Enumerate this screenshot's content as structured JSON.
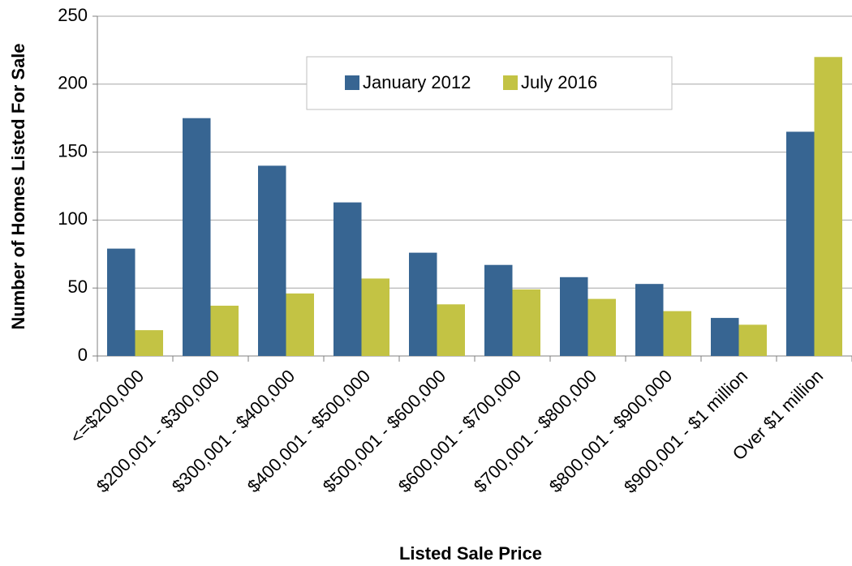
{
  "chart_data": {
    "type": "bar",
    "x_label": "Listed Sale Price",
    "y_label": "Number of Homes Listed For Sale",
    "categories": [
      "<=$200,000",
      "$200,001 - $300,000",
      "$300,001 - $400,000",
      "$400,001 - $500,000",
      "$500,001 - $600,000",
      "$600,001 - $700,000",
      "$700,001 - $800,000",
      "$800,001 - $900,000",
      "$900,001 - $1 million",
      "Over $1 million"
    ],
    "series": [
      {
        "name": "January 2012",
        "color": "#376592",
        "values": [
          79,
          175,
          140,
          113,
          76,
          67,
          58,
          53,
          28,
          165
        ]
      },
      {
        "name": "July 2016",
        "color": "#c3c344",
        "values": [
          19,
          37,
          46,
          57,
          38,
          49,
          42,
          33,
          23,
          220
        ]
      }
    ],
    "ylim": [
      0,
      250
    ],
    "yticks": [
      0,
      50,
      100,
      150,
      200,
      250
    ],
    "grid": true
  }
}
